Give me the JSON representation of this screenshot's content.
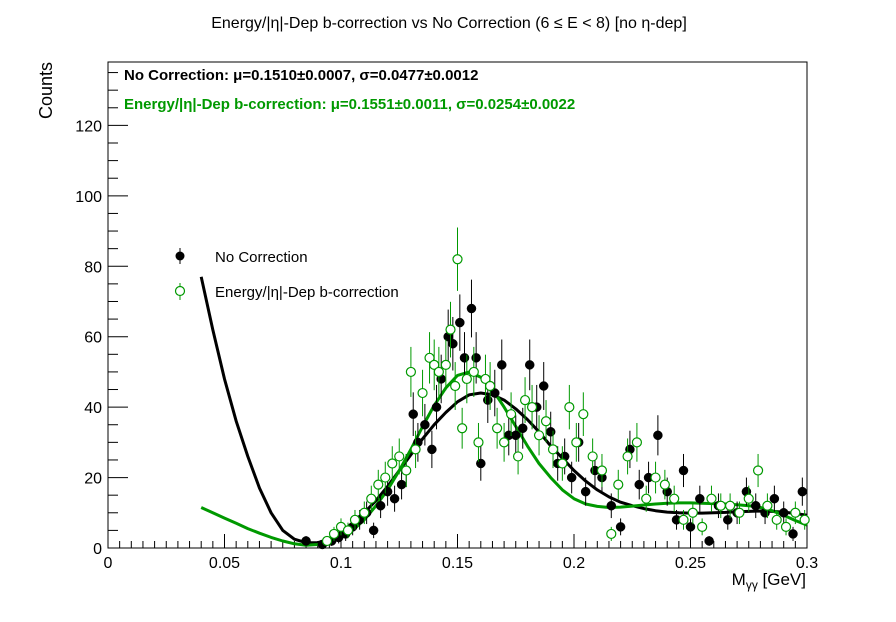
{
  "chart_data": {
    "type": "scatter",
    "title": "Energy/|η|-Dep b-correction vs No Correction   (6 ≤ E < 8)   [no η-dep]",
    "xlabel": "Mγγ [GeV]",
    "xlabel_main": "M",
    "xlabel_sub": "γγ",
    "xlabel_unit": " [GeV]",
    "ylabel": "Counts",
    "xlim": [
      0,
      0.3
    ],
    "ylim": [
      0,
      138
    ],
    "xticks": [
      0,
      0.05,
      0.1,
      0.15,
      0.2,
      0.25,
      0.3
    ],
    "xtick_labels": [
      "0",
      "0.05",
      "0.1",
      "0.15",
      "0.2",
      "0.25",
      "0.3"
    ],
    "yticks": [
      0,
      20,
      40,
      60,
      80,
      100,
      120
    ],
    "ytick_labels": [
      "0",
      "20",
      "40",
      "60",
      "80",
      "100",
      "120"
    ],
    "grid": false,
    "legend_position": "middle-left",
    "annotations": [
      {
        "text": "No Correction:  μ=0.1510±0.0007,  σ=0.0477±0.0012",
        "color": "#000000"
      },
      {
        "text": "Energy/|η|-Dep b-correction:  μ=0.1551±0.0011,  σ=0.0254±0.0022",
        "color": "#009900"
      }
    ],
    "series": [
      {
        "name": "No Correction",
        "color": "#000000",
        "marker": "filled-circle",
        "x": [
          0.085,
          0.092,
          0.096,
          0.099,
          0.102,
          0.105,
          0.108,
          0.111,
          0.114,
          0.117,
          0.12,
          0.123,
          0.126,
          0.128,
          0.131,
          0.133,
          0.136,
          0.139,
          0.141,
          0.143,
          0.146,
          0.148,
          0.151,
          0.153,
          0.156,
          0.158,
          0.16,
          0.163,
          0.166,
          0.169,
          0.172,
          0.175,
          0.178,
          0.181,
          0.184,
          0.187,
          0.19,
          0.193,
          0.196,
          0.199,
          0.202,
          0.205,
          0.209,
          0.212,
          0.216,
          0.22,
          0.224,
          0.228,
          0.232,
          0.236,
          0.24,
          0.244,
          0.247,
          0.25,
          0.254,
          0.258,
          0.262,
          0.266,
          0.27,
          0.274,
          0.278,
          0.282,
          0.286,
          0.29,
          0.294,
          0.298
        ],
        "y": [
          2,
          1,
          2,
          3,
          4,
          6,
          8,
          10,
          5,
          12,
          16,
          14,
          18,
          22,
          38,
          30,
          35,
          28,
          40,
          48,
          60,
          58,
          64,
          54,
          68,
          54,
          24,
          42,
          44,
          52,
          32,
          32,
          34,
          52,
          40,
          46,
          33,
          24,
          26,
          20,
          30,
          16,
          22,
          20,
          12,
          6,
          28,
          18,
          20,
          32,
          16,
          8,
          22,
          6,
          14,
          2,
          12,
          8,
          10,
          16,
          12,
          10,
          14,
          10,
          4,
          16
        ],
        "yerr": [
          1.4,
          1,
          1.4,
          1.7,
          2,
          2.4,
          2.8,
          3.2,
          2.2,
          3.5,
          4,
          3.7,
          4.2,
          4.7,
          6.2,
          5.5,
          5.9,
          5.3,
          6.3,
          6.9,
          7.7,
          7.6,
          8,
          7.3,
          8.2,
          7.3,
          4.9,
          6.5,
          6.6,
          7.2,
          5.7,
          5.7,
          5.8,
          7.2,
          6.3,
          6.8,
          5.7,
          4.9,
          5.1,
          4.5,
          5.5,
          4,
          4.7,
          4.5,
          3.5,
          2.4,
          5.3,
          4.2,
          4.5,
          5.7,
          4,
          2.8,
          4.7,
          2.4,
          3.7,
          1.4,
          3.5,
          2.8,
          3.2,
          4,
          3.5,
          3.2,
          3.7,
          3.2,
          2,
          4
        ]
      },
      {
        "name": "Energy/|η|-Dep b-correction",
        "color": "#009900",
        "marker": "open-circle",
        "x": [
          0.094,
          0.097,
          0.1,
          0.103,
          0.106,
          0.11,
          0.113,
          0.116,
          0.119,
          0.122,
          0.125,
          0.128,
          0.13,
          0.132,
          0.135,
          0.138,
          0.14,
          0.142,
          0.145,
          0.147,
          0.149,
          0.15,
          0.152,
          0.154,
          0.157,
          0.159,
          0.162,
          0.164,
          0.167,
          0.17,
          0.173,
          0.176,
          0.179,
          0.182,
          0.185,
          0.188,
          0.191,
          0.195,
          0.198,
          0.201,
          0.204,
          0.208,
          0.212,
          0.216,
          0.219,
          0.223,
          0.227,
          0.231,
          0.235,
          0.239,
          0.243,
          0.247,
          0.251,
          0.255,
          0.259,
          0.263,
          0.267,
          0.271,
          0.275,
          0.279,
          0.283,
          0.287,
          0.291,
          0.295,
          0.299
        ],
        "y": [
          2,
          4,
          6,
          5,
          8,
          10,
          14,
          18,
          20,
          24,
          26,
          22,
          50,
          28,
          44,
          54,
          52,
          50,
          52,
          62,
          46,
          82,
          34,
          48,
          50,
          30,
          48,
          46,
          34,
          30,
          38,
          26,
          42,
          40,
          32,
          36,
          28,
          24,
          40,
          30,
          38,
          26,
          22,
          4,
          18,
          26,
          30,
          14,
          20,
          18,
          14,
          8,
          10,
          6,
          14,
          12,
          12,
          10,
          14,
          22,
          12,
          8,
          6,
          10,
          8
        ],
        "yerr": [
          1.4,
          2,
          2.4,
          2.2,
          2.8,
          3.2,
          3.7,
          4.2,
          4.5,
          4.9,
          5.1,
          4.7,
          7.1,
          5.3,
          6.6,
          7.3,
          7.2,
          7.1,
          7.2,
          7.9,
          6.8,
          9,
          5.8,
          6.9,
          7.1,
          5.5,
          6.9,
          6.8,
          5.8,
          5.5,
          6.2,
          5.1,
          6.5,
          6.3,
          5.7,
          6,
          5.3,
          4.9,
          6.3,
          5.5,
          6.2,
          5.1,
          4.7,
          2,
          4.2,
          5.1,
          5.5,
          3.7,
          4.5,
          4.2,
          3.7,
          2.8,
          3.2,
          2.4,
          3.7,
          3.5,
          3.5,
          3.2,
          3.7,
          4.7,
          3.5,
          2.8,
          2.4,
          3.2,
          2.8
        ]
      }
    ],
    "fits": [
      {
        "name": "No Correction fit",
        "color": "#000000",
        "x": [
          0.04,
          0.045,
          0.05,
          0.055,
          0.06,
          0.065,
          0.07,
          0.075,
          0.08,
          0.085,
          0.09,
          0.095,
          0.1,
          0.105,
          0.11,
          0.115,
          0.12,
          0.125,
          0.13,
          0.135,
          0.14,
          0.145,
          0.15,
          0.155,
          0.16,
          0.165,
          0.17,
          0.175,
          0.18,
          0.185,
          0.19,
          0.195,
          0.2,
          0.205,
          0.21,
          0.215,
          0.22,
          0.225,
          0.23,
          0.235,
          0.24,
          0.245,
          0.25,
          0.255,
          0.26,
          0.265,
          0.27,
          0.275,
          0.28,
          0.285,
          0.29,
          0.295,
          0.3
        ],
        "y": [
          77,
          62,
          48,
          36,
          26,
          17,
          10,
          5,
          2.5,
          1.5,
          1.5,
          2.5,
          4.5,
          7,
          10,
          13.5,
          17.5,
          22,
          26.5,
          31,
          35,
          38.5,
          41.5,
          43.5,
          44,
          43.5,
          42,
          39.5,
          36.5,
          33,
          29,
          25.5,
          22,
          19,
          16.5,
          14.5,
          13,
          12,
          11.2,
          10.6,
          10.2,
          10,
          9.9,
          9.9,
          10,
          10.1,
          10.3,
          10.4,
          10.5,
          10.4,
          10.2,
          9.8,
          9.3
        ]
      },
      {
        "name": "Energy/|η|-Dep b-correction fit",
        "color": "#009900",
        "x": [
          0.04,
          0.045,
          0.05,
          0.055,
          0.06,
          0.065,
          0.07,
          0.075,
          0.08,
          0.085,
          0.09,
          0.095,
          0.1,
          0.105,
          0.11,
          0.115,
          0.12,
          0.125,
          0.13,
          0.135,
          0.14,
          0.145,
          0.15,
          0.155,
          0.16,
          0.165,
          0.17,
          0.175,
          0.18,
          0.185,
          0.19,
          0.195,
          0.2,
          0.205,
          0.21,
          0.215,
          0.22,
          0.225,
          0.23,
          0.235,
          0.24,
          0.245,
          0.25,
          0.255,
          0.26,
          0.265,
          0.27,
          0.275,
          0.28,
          0.285,
          0.29,
          0.295,
          0.3
        ],
        "y": [
          11.5,
          10,
          8.5,
          7,
          5.5,
          4.2,
          3,
          2,
          1.2,
          0.8,
          1,
          1.6,
          3,
          5,
          8,
          12,
          16.5,
          22,
          28,
          34.5,
          40.5,
          45.5,
          49,
          50,
          48.5,
          45,
          40,
          34.5,
          29,
          24,
          20,
          16.5,
          14,
          12.5,
          11.8,
          11.5,
          11.6,
          11.9,
          12.2,
          12.5,
          12.7,
          12.8,
          12.8,
          12.7,
          12.6,
          12.5,
          12.3,
          12,
          11.5,
          10.6,
          9.3,
          7.8,
          6.5
        ]
      }
    ]
  }
}
